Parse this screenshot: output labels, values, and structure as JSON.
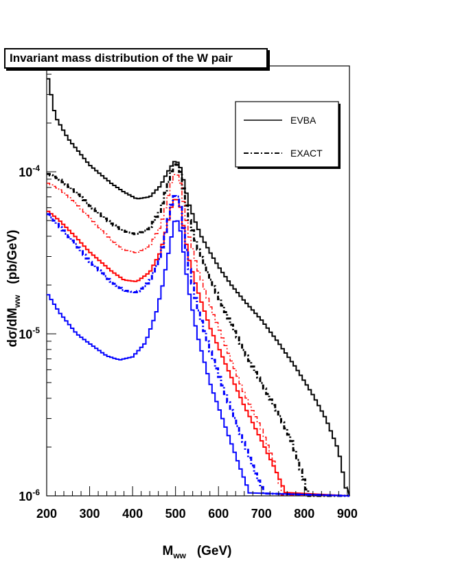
{
  "chart_data": {
    "type": "line",
    "title": "Invariant mass distribution of the W pair",
    "xlabel": {
      "main": "M",
      "sub": "ww",
      "unit": "(GeV)"
    },
    "ylabel": {
      "main": "dσ/dM",
      "sub": "ww",
      "unit": "(pb/GeV)"
    },
    "xlim": [
      200,
      905
    ],
    "ylim": [
      1e-06,
      0.00045
    ],
    "yscale": "log",
    "grid": false,
    "x_ticks": [
      "200",
      "300",
      "400",
      "500",
      "600",
      "700",
      "800",
      "900"
    ],
    "y_ticks": [
      {
        "base": "10",
        "exp": "-6"
      },
      {
        "base": "10",
        "exp": "-5"
      },
      {
        "base": "10",
        "exp": "-4"
      }
    ],
    "legend": {
      "placement": "top-right",
      "entries": [
        {
          "label": "EVBA",
          "style": "solid",
          "color": "#000000"
        },
        {
          "label": "EXACT",
          "style": "dash-dot",
          "color": "#000000"
        }
      ]
    },
    "series": [
      {
        "color": "#000000",
        "style": "solid",
        "width": 2,
        "points": [
          [
            200,
            0.00042
          ],
          [
            220,
            0.00022
          ],
          [
            250,
            0.00016
          ],
          [
            300,
            0.00011
          ],
          [
            350,
            8.5e-05
          ],
          [
            380,
            7.5e-05
          ],
          [
            410,
            6.8e-05
          ],
          [
            440,
            7e-05
          ],
          [
            465,
            8.2e-05
          ],
          [
            480,
            9.8e-05
          ],
          [
            490,
            0.000108
          ],
          [
            500,
            0.000118
          ],
          [
            510,
            0.00011
          ],
          [
            520,
            8.6e-05
          ],
          [
            530,
            6.5e-05
          ],
          [
            545,
            5e-05
          ],
          [
            560,
            4e-05
          ],
          [
            580,
            3.2e-05
          ],
          [
            600,
            2.6e-05
          ],
          [
            630,
            2e-05
          ],
          [
            660,
            1.6e-05
          ],
          [
            700,
            1.22e-05
          ],
          [
            740,
            8.8e-06
          ],
          [
            780,
            6.2e-06
          ],
          [
            820,
            4.2e-06
          ],
          [
            850,
            3e-06
          ],
          [
            880,
            1.9e-06
          ],
          [
            900,
            1e-06
          ]
        ]
      },
      {
        "color": "#000000",
        "style": "dashdot",
        "width": 3,
        "points": [
          [
            200,
            9.8e-05
          ],
          [
            230,
            9e-05
          ],
          [
            270,
            7.4e-05
          ],
          [
            300,
            6.2e-05
          ],
          [
            350,
            4.8e-05
          ],
          [
            380,
            4.3e-05
          ],
          [
            410,
            4.1e-05
          ],
          [
            440,
            4.5e-05
          ],
          [
            465,
            5.8e-05
          ],
          [
            480,
            8e-05
          ],
          [
            490,
            0.0001
          ],
          [
            500,
            0.000115
          ],
          [
            510,
            0.000105
          ],
          [
            520,
            7.5e-05
          ],
          [
            530,
            5.3e-05
          ],
          [
            550,
            3.5e-05
          ],
          [
            580,
            2.2e-05
          ],
          [
            620,
            1.3e-05
          ],
          [
            660,
            7.8e-06
          ],
          [
            700,
            5e-06
          ],
          [
            740,
            3.2e-06
          ],
          [
            770,
            2.2e-06
          ],
          [
            790,
            1.5e-06
          ],
          [
            810,
            1e-06
          ]
        ]
      },
      {
        "color": "#ff0000",
        "style": "dashdot",
        "width": 1.5,
        "points": [
          [
            200,
            8.6e-05
          ],
          [
            230,
            7.8e-05
          ],
          [
            270,
            6.3e-05
          ],
          [
            300,
            5.2e-05
          ],
          [
            350,
            3.8e-05
          ],
          [
            380,
            3.3e-05
          ],
          [
            410,
            3.15e-05
          ],
          [
            440,
            3.5e-05
          ],
          [
            465,
            4.6e-05
          ],
          [
            480,
            6.5e-05
          ],
          [
            490,
            8.5e-05
          ],
          [
            500,
            0.0001
          ],
          [
            510,
            9e-05
          ],
          [
            520,
            6.2e-05
          ],
          [
            530,
            4.2e-05
          ],
          [
            550,
            2.6e-05
          ],
          [
            580,
            1.5e-05
          ],
          [
            620,
            8e-06
          ],
          [
            660,
            4.3e-06
          ],
          [
            700,
            2.6e-06
          ],
          [
            730,
            1.6e-06
          ],
          [
            750,
            1e-06
          ]
        ]
      },
      {
        "color": "#ff0000",
        "style": "solid",
        "width": 2,
        "points": [
          [
            200,
            5.8e-05
          ],
          [
            230,
            5e-05
          ],
          [
            270,
            3.9e-05
          ],
          [
            300,
            3.2e-05
          ],
          [
            350,
            2.45e-05
          ],
          [
            380,
            2.15e-05
          ],
          [
            410,
            2.1e-05
          ],
          [
            440,
            2.4e-05
          ],
          [
            465,
            3.2e-05
          ],
          [
            480,
            4.6e-05
          ],
          [
            490,
            6e-05
          ],
          [
            500,
            7e-05
          ],
          [
            510,
            6.4e-05
          ],
          [
            520,
            4.4e-05
          ],
          [
            530,
            3e-05
          ],
          [
            550,
            1.9e-05
          ],
          [
            580,
            1.1e-05
          ],
          [
            620,
            6.2e-06
          ],
          [
            660,
            3.6e-06
          ],
          [
            700,
            2.2e-06
          ],
          [
            730,
            1.5e-06
          ],
          [
            760,
            1e-06
          ]
        ]
      },
      {
        "color": "#0000ff",
        "style": "dashdot",
        "width": 3,
        "points": [
          [
            200,
            5.6e-05
          ],
          [
            230,
            4.6e-05
          ],
          [
            270,
            3.5e-05
          ],
          [
            300,
            2.8e-05
          ],
          [
            350,
            2.1e-05
          ],
          [
            380,
            1.85e-05
          ],
          [
            410,
            1.8e-05
          ],
          [
            440,
            2.1e-05
          ],
          [
            465,
            3e-05
          ],
          [
            480,
            4.6e-05
          ],
          [
            490,
            6.2e-05
          ],
          [
            500,
            7.4e-05
          ],
          [
            510,
            6.6e-05
          ],
          [
            520,
            4.2e-05
          ],
          [
            530,
            2.7e-05
          ],
          [
            550,
            1.5e-05
          ],
          [
            580,
            8e-06
          ],
          [
            620,
            4e-06
          ],
          [
            660,
            2.1e-06
          ],
          [
            690,
            1.3e-06
          ],
          [
            710,
            1e-06
          ]
        ]
      },
      {
        "color": "#0000ff",
        "style": "solid",
        "width": 2,
        "points": [
          [
            200,
            1.8e-05
          ],
          [
            230,
            1.35e-05
          ],
          [
            270,
            1e-05
          ],
          [
            300,
            8.7e-06
          ],
          [
            340,
            7.3e-06
          ],
          [
            370,
            6.9e-06
          ],
          [
            400,
            7.2e-06
          ],
          [
            430,
            8.8e-06
          ],
          [
            455,
            1.35e-05
          ],
          [
            470,
            2e-05
          ],
          [
            485,
            3.3e-05
          ],
          [
            495,
            4.6e-05
          ],
          [
            500,
            5.3e-05
          ],
          [
            510,
            4.6e-05
          ],
          [
            520,
            3e-05
          ],
          [
            530,
            1.9e-05
          ],
          [
            550,
            1e-05
          ],
          [
            580,
            5e-06
          ],
          [
            620,
            2.5e-06
          ],
          [
            650,
            1.5e-06
          ],
          [
            675,
            1e-06
          ]
        ]
      }
    ]
  }
}
